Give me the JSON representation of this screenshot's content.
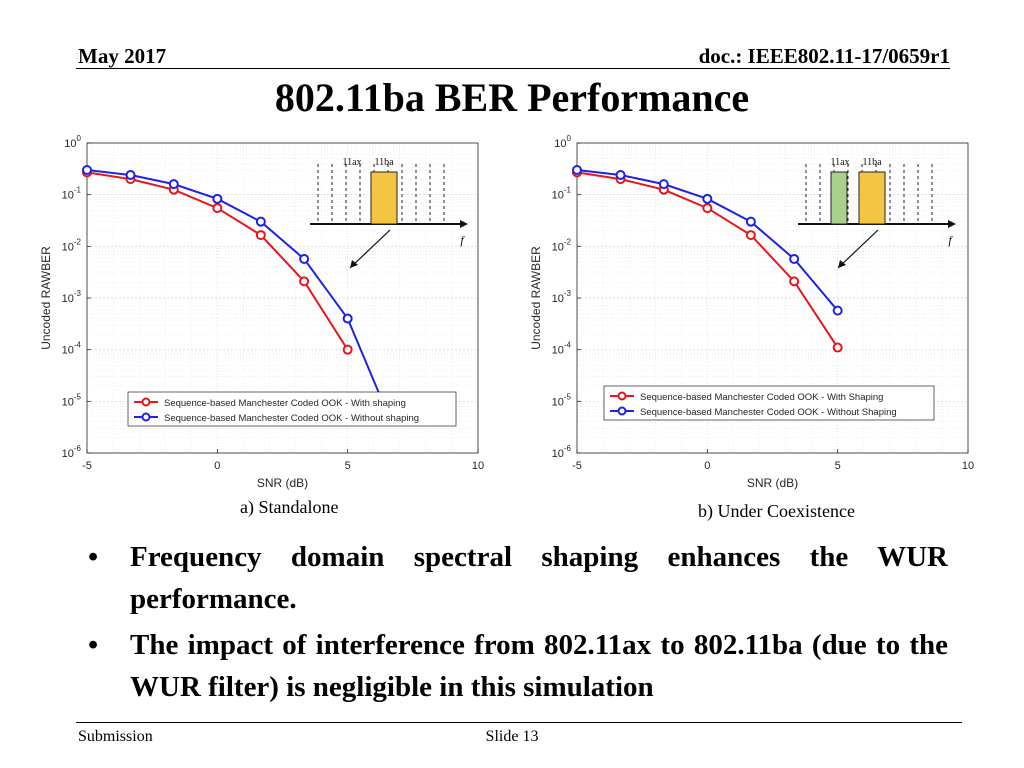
{
  "header": {
    "date": "May 2017",
    "doc": "doc.: IEEE802.11-17/0659r1"
  },
  "title": "802.11ba BER Performance",
  "chart_data": [
    {
      "type": "line",
      "caption": "a) Standalone",
      "xlabel": "SNR (dB)",
      "ylabel": "Uncoded RAWBER",
      "xlim": [
        -5,
        10
      ],
      "ylim_log10": [
        -6,
        0
      ],
      "yscale": "log",
      "xticks": [
        "-5",
        "0",
        "5",
        "10"
      ],
      "yticks": [
        {
          "base": "10",
          "exp": "0"
        },
        {
          "base": "10",
          "exp": "-1"
        },
        {
          "base": "10",
          "exp": "-2"
        },
        {
          "base": "10",
          "exp": "-3"
        },
        {
          "base": "10",
          "exp": "-4"
        },
        {
          "base": "10",
          "exp": "-5"
        },
        {
          "base": "10",
          "exp": "-6"
        }
      ],
      "grid": true,
      "legend_position": "bottom-right",
      "series": [
        {
          "name": "Sequence-based Manchester Coded OOK - With shaping",
          "color": "#e8151b",
          "x": [
            -5,
            -3.33,
            -1.67,
            0,
            1.67,
            3.33,
            5
          ],
          "y": [
            0.27,
            0.2,
            0.125,
            0.055,
            0.0165,
            0.0021,
            0.0001
          ]
        },
        {
          "name": "Sequence-based Manchester Coded OOK - Without shaping",
          "color": "#1e22e6",
          "x": [
            -5,
            -3.33,
            -1.67,
            0,
            1.67,
            3.33,
            5
          ],
          "y": [
            0.3,
            0.24,
            0.16,
            0.083,
            0.03,
            0.0057,
            0.0004
          ],
          "extension": {
            "x": [
              5,
              6.5
            ],
            "y": [
              0.0004,
              6.3e-06
            ]
          }
        }
      ],
      "inset": {
        "labels": [
          "11ax",
          "11ba"
        ],
        "axis_label": "f",
        "occupied_bands": [
          "11ba"
        ]
      }
    },
    {
      "type": "line",
      "caption": "b) Under Coexistence",
      "xlabel": "SNR (dB)",
      "ylabel": "Uncoded RAWBER",
      "xlim": [
        -5,
        10
      ],
      "ylim_log10": [
        -6,
        0
      ],
      "yscale": "log",
      "xticks": [
        "-5",
        "0",
        "5",
        "10"
      ],
      "yticks": [
        {
          "base": "10",
          "exp": "0"
        },
        {
          "base": "10",
          "exp": "-1"
        },
        {
          "base": "10",
          "exp": "-2"
        },
        {
          "base": "10",
          "exp": "-3"
        },
        {
          "base": "10",
          "exp": "-4"
        },
        {
          "base": "10",
          "exp": "-5"
        },
        {
          "base": "10",
          "exp": "-6"
        }
      ],
      "grid": true,
      "legend_position": "bottom-right",
      "series": [
        {
          "name": "Sequence-based Manchester Coded OOK - With Shaping",
          "color": "#e8151b",
          "x": [
            -5,
            -3.33,
            -1.67,
            0,
            1.67,
            3.33,
            5
          ],
          "y": [
            0.27,
            0.2,
            0.125,
            0.055,
            0.0165,
            0.0021,
            0.00011
          ]
        },
        {
          "name": "Sequence-based Manchester Coded OOK - Without Shaping",
          "color": "#1e22e6",
          "x": [
            -5,
            -3.33,
            -1.67,
            0,
            1.67,
            3.33,
            5
          ],
          "y": [
            0.3,
            0.24,
            0.16,
            0.083,
            0.03,
            0.0057,
            0.00057
          ]
        }
      ],
      "inset": {
        "labels": [
          "11ax",
          "11ba"
        ],
        "axis_label": "f",
        "occupied_bands": [
          "11ax",
          "11ba"
        ]
      }
    }
  ],
  "bullets": [
    "Frequency domain spectral shaping enhances the WUR performance.",
    "The impact of interference from 802.11ax to 802.11ba (due to the WUR filter) is negligible in this simulation"
  ],
  "bullet_glyph": "•",
  "footer": {
    "left": "Submission",
    "center": "Slide 13"
  }
}
